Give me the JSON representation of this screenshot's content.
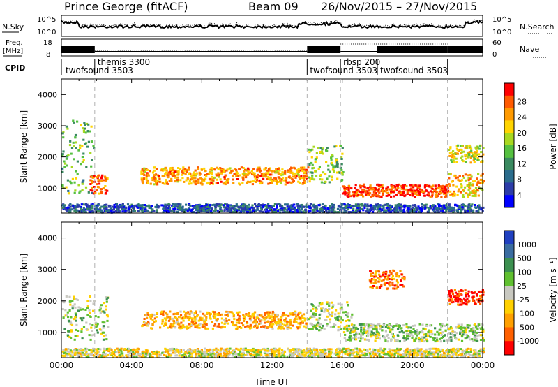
{
  "header": {
    "station": "Prince George (fitACF)",
    "beam": "Beam 09",
    "dates": "26/Nov/2015 – 27/Nov/2015"
  },
  "sky_panel": {
    "left_label": "N.Sky",
    "ticks": [
      "10^5",
      "10^0"
    ],
    "right_label": "N.Search"
  },
  "freq_panel": {
    "left_label_line1": "Freq.",
    "left_label_line2": "[MHz]",
    "left_ticks": [
      "18",
      "8"
    ],
    "right_ticks": [
      "60",
      "0"
    ],
    "right_label": "Nave"
  },
  "cpid_panel": {
    "label": "CPID",
    "programs": [
      {
        "name": "twofsound 3503",
        "start": 0,
        "end": 1.9
      },
      {
        "name": "themis 3300",
        "start": 1.9,
        "end": 14.0
      },
      {
        "name": "twofsound 3503",
        "start": 14.0,
        "end": 15.9
      },
      {
        "name": "rbsp 200",
        "start": 15.9,
        "end": 18.0
      },
      {
        "name": "twofsound 3503",
        "start": 18.0,
        "end": 22.0
      }
    ]
  },
  "chart_data": [
    {
      "type": "heatmap",
      "quantity": "power",
      "ylabel": "Slant Range [km]",
      "xlim": [
        0,
        24
      ],
      "ylim": [
        200,
        4500
      ],
      "yticks": [
        "1000",
        "2000",
        "3000",
        "4000"
      ],
      "colorbar_label": "Power [dB]",
      "colorbar_ticks": [
        "28",
        "24",
        "20",
        "16",
        "12",
        "8",
        "4"
      ],
      "colorbar_colors": [
        "#ff0000",
        "#ff5a00",
        "#ff9a00",
        "#ffd400",
        "#a8d820",
        "#55c040",
        "#3a8a60",
        "#2a6c8c",
        "#2c3ca8",
        "#0000ff"
      ],
      "bands": [
        {
          "x0": 0,
          "x1": 1.8,
          "y0": 850,
          "y1": 3200,
          "level": 0.45
        },
        {
          "x0": 1.6,
          "x1": 2.6,
          "y0": 850,
          "y1": 1450,
          "level": 0.85
        },
        {
          "x0": 4.5,
          "x1": 14.0,
          "y0": 1150,
          "y1": 1700,
          "level": 0.75
        },
        {
          "x0": 14.0,
          "x1": 16.0,
          "y0": 1200,
          "y1": 2400,
          "level": 0.5
        },
        {
          "x0": 16.0,
          "x1": 22.0,
          "y0": 750,
          "y1": 1150,
          "level": 0.9
        },
        {
          "x0": 22.0,
          "x1": 24.0,
          "y0": 750,
          "y1": 1500,
          "level": 0.7
        },
        {
          "x0": 22.0,
          "x1": 24.0,
          "y0": 1850,
          "y1": 2400,
          "level": 0.6
        },
        {
          "x0": 0,
          "x1": 24.0,
          "y0": 250,
          "y1": 520,
          "level": 0.2
        }
      ]
    },
    {
      "type": "heatmap",
      "quantity": "velocity",
      "ylabel": "Slant Range [km]",
      "xlabel": "Time UT",
      "xlim": [
        0,
        24
      ],
      "ylim": [
        200,
        4500
      ],
      "xticks": [
        "00:00",
        "04:00",
        "08:00",
        "12:00",
        "16:00",
        "20:00",
        "00:00"
      ],
      "yticks": [
        "1000",
        "2000",
        "3000",
        "4000"
      ],
      "colorbar_label": "Velocity [m s⁻¹]",
      "colorbar_ticks": [
        "1000",
        "500",
        "100",
        "25",
        "-25",
        "-100",
        "-500",
        "-1000"
      ],
      "colorbar_colors": [
        "#2040c0",
        "#3a6ca0",
        "#3c9050",
        "#60c030",
        "#c8c8c0",
        "#ffd000",
        "#ffa000",
        "#ff6000",
        "#ff0000"
      ],
      "bands": [
        {
          "x0": 0,
          "x1": 2.6,
          "y0": 800,
          "y1": 2200,
          "level": 0.45
        },
        {
          "x0": 4.5,
          "x1": 14.0,
          "y0": 1150,
          "y1": 1700,
          "level": 0.7
        },
        {
          "x0": 14.0,
          "x1": 16.5,
          "y0": 1100,
          "y1": 2000,
          "level": 0.45
        },
        {
          "x0": 16.0,
          "x1": 24.0,
          "y0": 750,
          "y1": 1300,
          "level": 0.45
        },
        {
          "x0": 17.5,
          "x1": 19.5,
          "y0": 2400,
          "y1": 3000,
          "level": 0.8
        },
        {
          "x0": 22.0,
          "x1": 24.0,
          "y0": 1900,
          "y1": 2400,
          "level": 0.9
        },
        {
          "x0": 0,
          "x1": 24.0,
          "y0": 250,
          "y1": 520,
          "level": 0.55
        }
      ]
    }
  ]
}
